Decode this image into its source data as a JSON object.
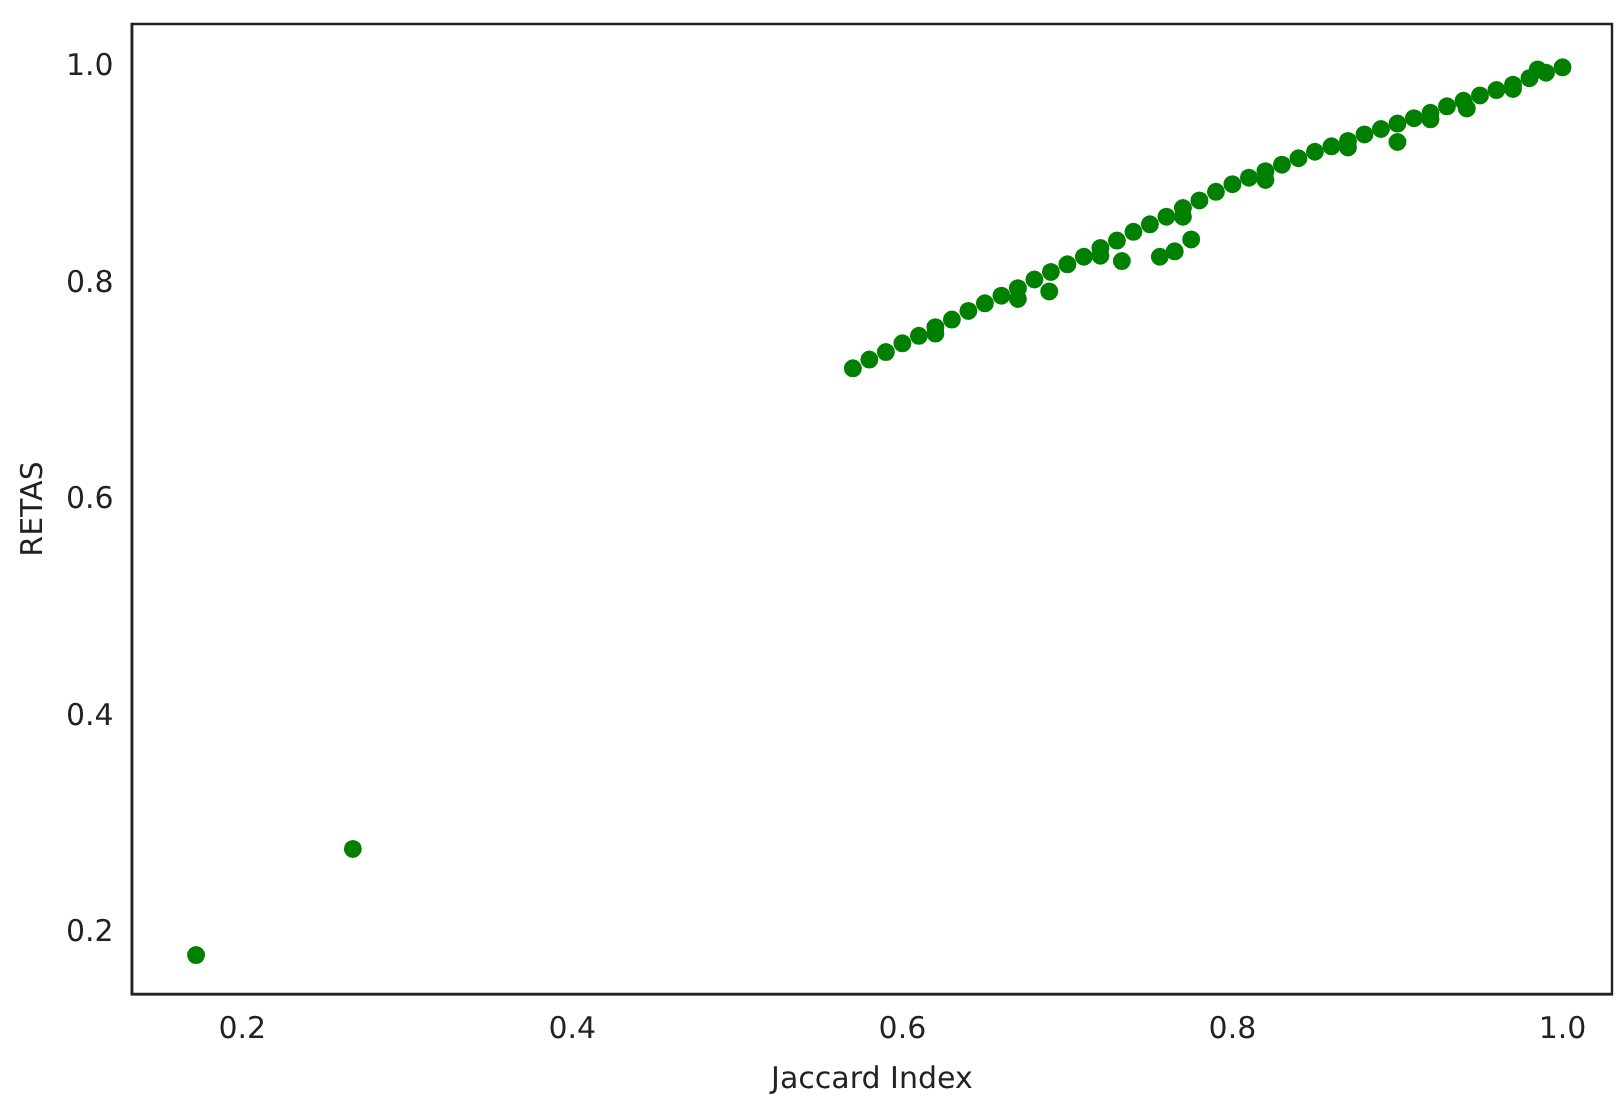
{
  "chart_data": {
    "type": "scatter",
    "xlabel": "Jaccard Index",
    "ylabel": "RETAS",
    "x": [
      0.172,
      0.267,
      0.57,
      0.58,
      0.59,
      0.6,
      0.61,
      0.62,
      0.63,
      0.64,
      0.65,
      0.66,
      0.67,
      0.68,
      0.69,
      0.7,
      0.71,
      0.72,
      0.73,
      0.74,
      0.75,
      0.76,
      0.77,
      0.78,
      0.79,
      0.8,
      0.81,
      0.82,
      0.83,
      0.84,
      0.85,
      0.86,
      0.87,
      0.88,
      0.89,
      0.9,
      0.91,
      0.92,
      0.93,
      0.94,
      0.95,
      0.96,
      0.97,
      0.98,
      0.99,
      1.0,
      0.62,
      0.67,
      0.72,
      0.77,
      0.82,
      0.87,
      0.92,
      0.97,
      0.985,
      0.689,
      0.733,
      0.756,
      0.765,
      0.775,
      0.9,
      0.942
    ],
    "values": [
      0.18,
      0.278,
      0.722,
      0.73,
      0.737,
      0.745,
      0.752,
      0.76,
      0.767,
      0.775,
      0.782,
      0.789,
      0.796,
      0.804,
      0.811,
      0.818,
      0.825,
      0.833,
      0.84,
      0.848,
      0.855,
      0.862,
      0.87,
      0.877,
      0.885,
      0.892,
      0.898,
      0.904,
      0.91,
      0.916,
      0.922,
      0.927,
      0.932,
      0.938,
      0.943,
      0.948,
      0.953,
      0.958,
      0.964,
      0.969,
      0.974,
      0.979,
      0.984,
      0.99,
      0.995,
      1.0,
      0.754,
      0.786,
      0.826,
      0.862,
      0.896,
      0.926,
      0.952,
      0.98,
      0.998,
      0.793,
      0.821,
      0.825,
      0.83,
      0.841,
      0.931,
      0.962
    ],
    "color": "#008000",
    "marker": "circle",
    "xlim": [
      0.133,
      1.03
    ],
    "xticks": [
      {
        "value": 0.2,
        "label": "0.2"
      },
      {
        "value": 0.4,
        "label": "0.4"
      },
      {
        "value": 0.6,
        "label": "0.6"
      },
      {
        "value": 0.8,
        "label": "0.8"
      },
      {
        "value": 1.0,
        "label": "1.0"
      }
    ],
    "ylim": [
      0.144,
      1.04
    ],
    "yticks": [
      {
        "value": 0.2,
        "label": "0.2"
      },
      {
        "value": 0.4,
        "label": "0.4"
      },
      {
        "value": 0.6,
        "label": "0.6"
      },
      {
        "value": 0.8,
        "label": "0.8"
      },
      {
        "value": 1.0,
        "label": "1.0"
      }
    ],
    "grid": false,
    "legend": false
  }
}
